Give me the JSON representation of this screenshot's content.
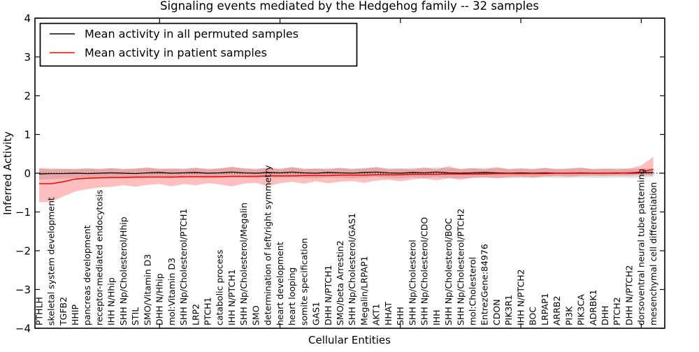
{
  "figure": {
    "title": "Signaling events mediated by the Hedgehog family -- 32 samples"
  },
  "chart_data": {
    "type": "line",
    "title": "Signaling events mediated by the Hedgehog family -- 32 samples",
    "xlabel": "Cellular Entities",
    "ylabel": "Inferred Activity",
    "ylim": [
      -4,
      4
    ],
    "yticks": [
      4,
      3,
      2,
      1,
      0,
      -1,
      -2,
      -3,
      -4
    ],
    "x_major_tick_indices": [
      10,
      20,
      30,
      40,
      50
    ],
    "grid": false,
    "zero_line_style": "dotted",
    "legend_position": "upper left",
    "categories": [
      "PTHLH",
      "skeletal system development",
      "TGFB2",
      "HHIP",
      "pancreas development",
      "receptor-mediated endocytosis",
      "IHH N/Hhip",
      "SHH Np/Cholesterol/Hhip",
      "STIL",
      "SMO/Vitamin D3",
      "DHH N/Hhip",
      "mol:Vitamin D3",
      "SHH Np/Cholesterol/PTCH1",
      "LRP2",
      "PTCH1",
      "catabolic process",
      "IHH N/PTCH1",
      "SHH Np/Cholesterol/Megalin",
      "SMO",
      "determination of left/right symmetry",
      "heart development",
      "heart looping",
      "somite specification",
      "GAS1",
      "DHH N/PTCH1",
      "SMO/beta Arrestin2",
      "SHH Np/Cholesterol/GAS1",
      "Megalin/LRPAP1",
      "AKT1",
      "HHAT",
      "SHH",
      "SHH Np/Cholesterol",
      "SHH Np/Cholesterol/CDO",
      "IHH",
      "SHH Np/Cholesterol/BOC",
      "SHH Np/Cholesterol/PTCH2",
      "mol:Cholesterol",
      "EntrezGene:84976",
      "CDON",
      "PIK3R1",
      "IHH N/PTCH2",
      "BOC",
      "LRPAP1",
      "ARRB2",
      "PI3K",
      "PIK3CA",
      "ADRBK1",
      "DHH",
      "PTCH2",
      "DHH N/PTCH2",
      "dorsoventral neural tube patterning",
      "mesenchymal cell differentiation"
    ],
    "series": [
      {
        "name": "Mean activity in all permuted samples",
        "color": "#000000",
        "band_color": "#808080",
        "band_opacity": 0.25,
        "values": [
          -0.02,
          -0.01,
          -0.01,
          0.0,
          -0.01,
          0.0,
          0.01,
          0.0,
          -0.01,
          0.01,
          0.02,
          0.0,
          0.01,
          0.02,
          0.0,
          0.01,
          0.03,
          0.01,
          0.0,
          0.02,
          0.01,
          0.03,
          0.01,
          0.0,
          0.02,
          0.01,
          0.0,
          0.02,
          0.03,
          0.01,
          0.0,
          0.02,
          0.01,
          0.03,
          0.01,
          0.0,
          0.01,
          0.02,
          0.01,
          0.0,
          0.01,
          0.0,
          0.01,
          0.0,
          0.0,
          0.01,
          0.0,
          0.0,
          0.01,
          0.0,
          0.01,
          0.02
        ],
        "band_upper": [
          0.14,
          0.13,
          0.12,
          0.12,
          0.13,
          0.12,
          0.13,
          0.12,
          0.12,
          0.14,
          0.13,
          0.12,
          0.13,
          0.14,
          0.12,
          0.13,
          0.15,
          0.13,
          0.12,
          0.14,
          0.13,
          0.15,
          0.13,
          0.12,
          0.14,
          0.13,
          0.12,
          0.14,
          0.15,
          0.13,
          0.12,
          0.14,
          0.13,
          0.15,
          0.13,
          0.12,
          0.13,
          0.14,
          0.13,
          0.12,
          0.13,
          0.12,
          0.13,
          0.12,
          0.12,
          0.13,
          0.12,
          0.12,
          0.13,
          0.12,
          0.12,
          0.13
        ],
        "band_lower": [
          -0.17,
          -0.15,
          -0.14,
          -0.13,
          -0.14,
          -0.13,
          -0.12,
          -0.13,
          -0.14,
          -0.12,
          -0.11,
          -0.13,
          -0.12,
          -0.11,
          -0.13,
          -0.12,
          -0.1,
          -0.12,
          -0.13,
          -0.11,
          -0.12,
          -0.1,
          -0.12,
          -0.13,
          -0.11,
          -0.12,
          -0.13,
          -0.11,
          -0.1,
          -0.12,
          -0.13,
          -0.11,
          -0.12,
          -0.1,
          -0.12,
          -0.13,
          -0.12,
          -0.11,
          -0.12,
          -0.13,
          -0.12,
          -0.12,
          -0.11,
          -0.12,
          -0.12,
          -0.11,
          -0.12,
          -0.12,
          -0.11,
          -0.12,
          -0.11,
          -0.1
        ]
      },
      {
        "name": "Mean activity in patient samples",
        "color": "#ff0000",
        "band_color": "#ff0000",
        "band_opacity": 0.25,
        "values": [
          -0.27,
          -0.27,
          -0.22,
          -0.15,
          -0.13,
          -0.12,
          -0.11,
          -0.11,
          -0.1,
          -0.1,
          -0.1,
          -0.1,
          -0.09,
          -0.09,
          -0.09,
          -0.09,
          -0.08,
          -0.08,
          -0.08,
          -0.07,
          -0.07,
          -0.07,
          -0.06,
          -0.06,
          -0.06,
          -0.05,
          -0.05,
          -0.05,
          -0.04,
          -0.04,
          -0.04,
          -0.03,
          -0.03,
          -0.03,
          -0.02,
          -0.02,
          -0.02,
          -0.02,
          -0.01,
          -0.01,
          -0.01,
          -0.01,
          -0.01,
          0.0,
          0.0,
          0.0,
          0.0,
          0.0,
          0.0,
          0.01,
          0.03,
          0.1
        ],
        "band_upper": [
          0.12,
          0.1,
          0.11,
          0.1,
          0.12,
          0.1,
          0.13,
          0.1,
          0.12,
          0.15,
          0.1,
          0.12,
          0.1,
          0.14,
          0.1,
          0.12,
          0.17,
          0.12,
          0.1,
          0.14,
          0.1,
          0.16,
          0.1,
          0.12,
          0.1,
          0.14,
          0.1,
          0.12,
          0.16,
          0.1,
          0.12,
          0.1,
          0.15,
          0.1,
          0.18,
          0.1,
          0.13,
          0.1,
          0.16,
          0.1,
          0.12,
          0.1,
          0.14,
          0.1,
          0.12,
          0.15,
          0.1,
          0.12,
          0.1,
          0.12,
          0.2,
          0.42
        ],
        "band_lower": [
          -0.75,
          -0.74,
          -0.6,
          -0.47,
          -0.41,
          -0.37,
          -0.35,
          -0.31,
          -0.35,
          -0.3,
          -0.28,
          -0.34,
          -0.28,
          -0.31,
          -0.26,
          -0.29,
          -0.34,
          -0.27,
          -0.25,
          -0.33,
          -0.26,
          -0.22,
          -0.27,
          -0.21,
          -0.26,
          -0.22,
          -0.2,
          -0.25,
          -0.19,
          -0.17,
          -0.21,
          -0.16,
          -0.14,
          -0.18,
          -0.13,
          -0.17,
          -0.12,
          -0.11,
          -0.13,
          -0.1,
          -0.09,
          -0.11,
          -0.08,
          -0.07,
          -0.09,
          -0.07,
          -0.06,
          -0.07,
          -0.06,
          -0.06,
          -0.05,
          -0.06
        ]
      }
    ]
  }
}
